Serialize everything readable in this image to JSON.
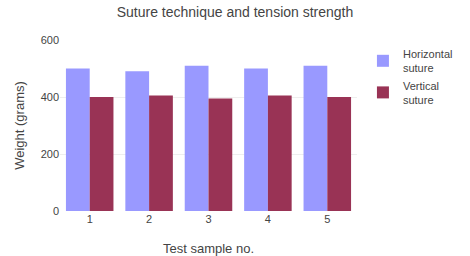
{
  "chart_data": {
    "type": "bar",
    "title": "Suture technique and tension strength",
    "xlabel": "Test sample no.",
    "ylabel": "Weight (grams)",
    "categories": [
      1,
      2,
      3,
      4,
      5
    ],
    "series": [
      {
        "name": "Horizontal\nsuture",
        "color": "#9999FF",
        "values": [
          500,
          490,
          510,
          500,
          510
        ]
      },
      {
        "name": "Vertical\nsuture",
        "color": "#993355",
        "values": [
          400,
          405,
          395,
          405,
          400
        ]
      }
    ],
    "ylim": [
      0,
      600
    ],
    "yticks": [
      0,
      200,
      400,
      600
    ],
    "grid": true,
    "legend": "right"
  }
}
